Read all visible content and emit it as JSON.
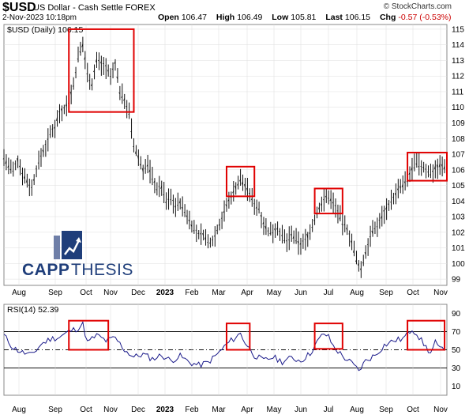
{
  "header": {
    "symbol": "$USD",
    "name": "US Dollar - Cash Settle  FOREX",
    "date": "2-Nov-2023 10:18pm",
    "source": "© StockCharts.com",
    "open_label": "Open",
    "open": "106.47",
    "high_label": "High",
    "high": "106.49",
    "low_label": "Low",
    "low": "105.81",
    "last_label": "Last",
    "last": "106.15",
    "chg_label": "Chg",
    "chg": "-0.57 (-0.53%)"
  },
  "logo": {
    "text_a": "CAPP",
    "text_b": "THESIS",
    "color": "#1f3e7a",
    "accent": "#6f7fa8"
  },
  "colors": {
    "price": "#111111",
    "rsi": "#1a1a8a",
    "box": "#e00000",
    "grid": "#dddddd"
  },
  "chart_data": [
    {
      "type": "ohlc",
      "legend": "$USD (Daily) 106.15",
      "x_tick_labels": [
        "Aug",
        "Sep",
        "Oct",
        "Nov",
        "Dec",
        "2023",
        "Feb",
        "Mar",
        "Apr",
        "May",
        "Jun",
        "Jul",
        "Aug",
        "Sep",
        "Oct",
        "Nov"
      ],
      "y_ticks": [
        99,
        100,
        101,
        102,
        103,
        104,
        105,
        106,
        107,
        108,
        109,
        110,
        111,
        112,
        113,
        114,
        115
      ],
      "ylim": [
        98.6,
        115.3
      ],
      "series": [
        {
          "x": 0,
          "y": 106.8
        },
        {
          "x": 2,
          "y": 106.2
        },
        {
          "x": 4,
          "y": 105.9
        },
        {
          "x": 6,
          "y": 106.6
        },
        {
          "x": 8,
          "y": 105.8
        },
        {
          "x": 10,
          "y": 105.3
        },
        {
          "x": 12,
          "y": 104.8
        },
        {
          "x": 14,
          "y": 106.0
        },
        {
          "x": 16,
          "y": 106.9
        },
        {
          "x": 18,
          "y": 107.5
        },
        {
          "x": 20,
          "y": 108.3
        },
        {
          "x": 22,
          "y": 108.8
        },
        {
          "x": 24,
          "y": 109.7
        },
        {
          "x": 26,
          "y": 109.9
        },
        {
          "x": 28,
          "y": 110.4
        },
        {
          "x": 30,
          "y": 111.4
        },
        {
          "x": 32,
          "y": 113.2
        },
        {
          "x": 34,
          "y": 114.0
        },
        {
          "x": 36,
          "y": 112.2
        },
        {
          "x": 38,
          "y": 111.5
        },
        {
          "x": 40,
          "y": 113.0
        },
        {
          "x": 42,
          "y": 112.8
        },
        {
          "x": 44,
          "y": 112.6
        },
        {
          "x": 46,
          "y": 111.9
        },
        {
          "x": 48,
          "y": 112.8
        },
        {
          "x": 50,
          "y": 111.0
        },
        {
          "x": 52,
          "y": 110.5
        },
        {
          "x": 54,
          "y": 109.6
        },
        {
          "x": 56,
          "y": 107.5
        },
        {
          "x": 58,
          "y": 106.8
        },
        {
          "x": 60,
          "y": 106.0
        },
        {
          "x": 62,
          "y": 106.3
        },
        {
          "x": 64,
          "y": 105.5
        },
        {
          "x": 66,
          "y": 104.8
        },
        {
          "x": 68,
          "y": 104.9
        },
        {
          "x": 70,
          "y": 104.0
        },
        {
          "x": 72,
          "y": 104.2
        },
        {
          "x": 74,
          "y": 103.7
        },
        {
          "x": 76,
          "y": 103.9
        },
        {
          "x": 78,
          "y": 103.3
        },
        {
          "x": 80,
          "y": 102.8
        },
        {
          "x": 82,
          "y": 102.2
        },
        {
          "x": 84,
          "y": 101.8
        },
        {
          "x": 86,
          "y": 101.9
        },
        {
          "x": 88,
          "y": 101.3
        },
        {
          "x": 90,
          "y": 101.5
        },
        {
          "x": 92,
          "y": 102.2
        },
        {
          "x": 94,
          "y": 102.9
        },
        {
          "x": 96,
          "y": 103.7
        },
        {
          "x": 98,
          "y": 104.3
        },
        {
          "x": 100,
          "y": 104.9
        },
        {
          "x": 102,
          "y": 105.4
        },
        {
          "x": 104,
          "y": 105.0
        },
        {
          "x": 106,
          "y": 104.4
        },
        {
          "x": 108,
          "y": 103.8
        },
        {
          "x": 110,
          "y": 103.5
        },
        {
          "x": 112,
          "y": 102.6
        },
        {
          "x": 114,
          "y": 102.0
        },
        {
          "x": 116,
          "y": 102.1
        },
        {
          "x": 118,
          "y": 102.3
        },
        {
          "x": 120,
          "y": 101.7
        },
        {
          "x": 122,
          "y": 101.4
        },
        {
          "x": 124,
          "y": 101.8
        },
        {
          "x": 126,
          "y": 101.5
        },
        {
          "x": 128,
          "y": 101.2
        },
        {
          "x": 130,
          "y": 101.5
        },
        {
          "x": 132,
          "y": 102.0
        },
        {
          "x": 134,
          "y": 102.8
        },
        {
          "x": 136,
          "y": 103.6
        },
        {
          "x": 138,
          "y": 104.1
        },
        {
          "x": 140,
          "y": 104.3
        },
        {
          "x": 142,
          "y": 103.9
        },
        {
          "x": 144,
          "y": 103.3
        },
        {
          "x": 146,
          "y": 102.6
        },
        {
          "x": 148,
          "y": 102.2
        },
        {
          "x": 150,
          "y": 101.4
        },
        {
          "x": 152,
          "y": 100.2
        },
        {
          "x": 154,
          "y": 99.6
        },
        {
          "x": 156,
          "y": 100.7
        },
        {
          "x": 158,
          "y": 101.8
        },
        {
          "x": 160,
          "y": 102.2
        },
        {
          "x": 162,
          "y": 102.7
        },
        {
          "x": 164,
          "y": 103.3
        },
        {
          "x": 166,
          "y": 103.8
        },
        {
          "x": 168,
          "y": 104.2
        },
        {
          "x": 170,
          "y": 104.7
        },
        {
          "x": 172,
          "y": 105.0
        },
        {
          "x": 174,
          "y": 105.3
        },
        {
          "x": 176,
          "y": 106.1
        },
        {
          "x": 178,
          "y": 106.4
        },
        {
          "x": 180,
          "y": 106.2
        },
        {
          "x": 182,
          "y": 106.0
        },
        {
          "x": 184,
          "y": 105.8
        },
        {
          "x": 186,
          "y": 106.1
        },
        {
          "x": 188,
          "y": 106.3
        },
        {
          "x": 190,
          "y": 106.15
        }
      ]
    },
    {
      "type": "line",
      "legend": "RSI(14) 52.39",
      "x_tick_labels": [
        "Aug",
        "Sep",
        "Oct",
        "Nov",
        "Dec",
        "2023",
        "Feb",
        "Mar",
        "Apr",
        "May",
        "Jun",
        "Jul",
        "Aug",
        "Sep",
        "Oct",
        "Nov"
      ],
      "y_ticks": [
        10,
        30,
        50,
        70,
        90
      ],
      "ylim": [
        0,
        100
      ],
      "reference_lines": [
        {
          "y": 30,
          "style": "solid"
        },
        {
          "y": 50,
          "style": "dashdot"
        },
        {
          "y": 70,
          "style": "solid"
        }
      ],
      "series": [
        {
          "x": 0,
          "y": 66
        },
        {
          "x": 4,
          "y": 52
        },
        {
          "x": 8,
          "y": 47
        },
        {
          "x": 12,
          "y": 44
        },
        {
          "x": 16,
          "y": 56
        },
        {
          "x": 20,
          "y": 62
        },
        {
          "x": 24,
          "y": 64
        },
        {
          "x": 28,
          "y": 70
        },
        {
          "x": 32,
          "y": 74
        },
        {
          "x": 34,
          "y": 78
        },
        {
          "x": 36,
          "y": 58
        },
        {
          "x": 40,
          "y": 66
        },
        {
          "x": 44,
          "y": 60
        },
        {
          "x": 48,
          "y": 63
        },
        {
          "x": 52,
          "y": 50
        },
        {
          "x": 56,
          "y": 42
        },
        {
          "x": 60,
          "y": 45
        },
        {
          "x": 64,
          "y": 40
        },
        {
          "x": 68,
          "y": 44
        },
        {
          "x": 72,
          "y": 38
        },
        {
          "x": 76,
          "y": 43
        },
        {
          "x": 80,
          "y": 36
        },
        {
          "x": 84,
          "y": 33
        },
        {
          "x": 88,
          "y": 36
        },
        {
          "x": 92,
          "y": 45
        },
        {
          "x": 96,
          "y": 56
        },
        {
          "x": 100,
          "y": 64
        },
        {
          "x": 102,
          "y": 68
        },
        {
          "x": 104,
          "y": 58
        },
        {
          "x": 108,
          "y": 44
        },
        {
          "x": 112,
          "y": 38
        },
        {
          "x": 116,
          "y": 42
        },
        {
          "x": 120,
          "y": 37
        },
        {
          "x": 124,
          "y": 41
        },
        {
          "x": 128,
          "y": 38
        },
        {
          "x": 132,
          "y": 46
        },
        {
          "x": 136,
          "y": 62
        },
        {
          "x": 138,
          "y": 68
        },
        {
          "x": 140,
          "y": 64
        },
        {
          "x": 142,
          "y": 54
        },
        {
          "x": 146,
          "y": 43
        },
        {
          "x": 150,
          "y": 35
        },
        {
          "x": 153,
          "y": 27
        },
        {
          "x": 156,
          "y": 38
        },
        {
          "x": 160,
          "y": 44
        },
        {
          "x": 164,
          "y": 55
        },
        {
          "x": 168,
          "y": 60
        },
        {
          "x": 172,
          "y": 62
        },
        {
          "x": 176,
          "y": 73
        },
        {
          "x": 178,
          "y": 68
        },
        {
          "x": 180,
          "y": 60
        },
        {
          "x": 182,
          "y": 53
        },
        {
          "x": 184,
          "y": 46
        },
        {
          "x": 186,
          "y": 58
        },
        {
          "x": 188,
          "y": 50
        },
        {
          "x": 190,
          "y": 52.39
        }
      ]
    }
  ],
  "highlight_boxes": {
    "price": [
      {
        "x0": 28,
        "x1": 56,
        "y0": 109.7,
        "y1": 115.0
      },
      {
        "x0": 96,
        "x1": 108,
        "y0": 104.3,
        "y1": 106.2
      },
      {
        "x0": 134,
        "x1": 146,
        "y0": 103.2,
        "y1": 104.8
      },
      {
        "x0": 174,
        "x1": 191,
        "y0": 105.3,
        "y1": 107.1
      }
    ],
    "rsi": [
      {
        "x0": 28,
        "x1": 45,
        "y0": 50,
        "y1": 82
      },
      {
        "x0": 96,
        "x1": 106,
        "y0": 50,
        "y1": 79
      },
      {
        "x0": 134,
        "x1": 146,
        "y0": 51,
        "y1": 79
      },
      {
        "x0": 174,
        "x1": 190,
        "y0": 50,
        "y1": 82
      }
    ]
  }
}
